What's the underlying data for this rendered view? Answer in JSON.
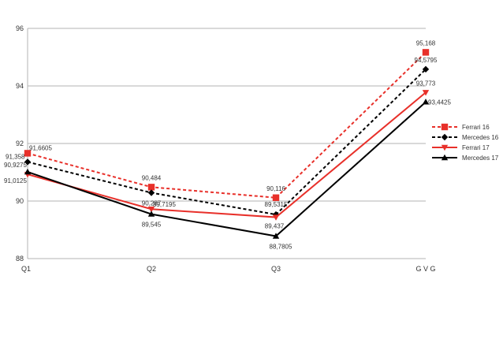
{
  "chart_data": {
    "type": "line",
    "categories": [
      "Q1",
      "Q2",
      "Q3",
      "G V G"
    ],
    "y_ticks": [
      "96",
      "94",
      "92",
      "90",
      "88"
    ],
    "ylim": [
      88,
      96
    ],
    "grid": "horizontal",
    "legend_position": "right",
    "series": [
      {
        "name": "Ferrari 16",
        "color": "#e8302a",
        "line_style": "dashed",
        "marker": "square",
        "values": [
          91.6605,
          90.484,
          90.116,
          95.168
        ],
        "labels": [
          "91,6605",
          "90,484",
          "90,116",
          "95,168"
        ]
      },
      {
        "name": "Mercedes 16",
        "color": "#000000",
        "line_style": "dashed",
        "marker": "diamond",
        "values": [
          91.358,
          90.287,
          89.5315,
          94.5795
        ],
        "labels": [
          "91,358",
          "90,287",
          "89,5315",
          "94,5795"
        ]
      },
      {
        "name": "Ferrari 17",
        "color": "#e8302a",
        "line_style": "solid",
        "marker": "triangle-down",
        "values": [
          90.9275,
          89.7195,
          89.437,
          93.773
        ],
        "labels": [
          "90,9275",
          "89,7195",
          "89,437",
          "93,773"
        ]
      },
      {
        "name": "Mercedes 17",
        "color": "#000000",
        "line_style": "solid",
        "marker": "triangle-up",
        "values": [
          91.0125,
          89.545,
          88.7805,
          93.4425
        ],
        "labels": [
          "91,0125",
          "89,545",
          "88,7805",
          "93,4425"
        ]
      }
    ]
  }
}
